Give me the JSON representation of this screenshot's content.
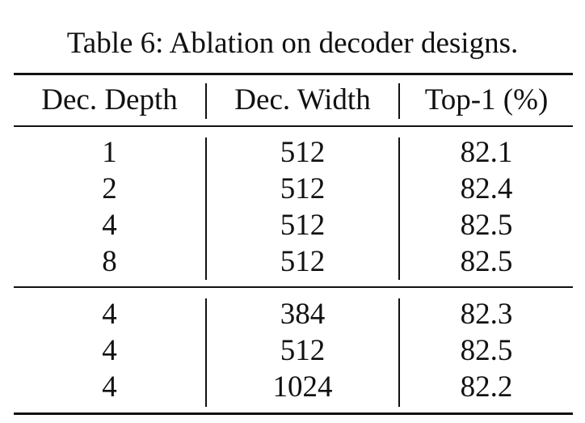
{
  "caption": "Table 6: Ablation on decoder designs.",
  "table": {
    "headers": [
      "Dec. Depth",
      "Dec. Width",
      "Top-1 (%)"
    ],
    "groups": [
      [
        [
          "1",
          "512",
          "82.1"
        ],
        [
          "2",
          "512",
          "82.4"
        ],
        [
          "4",
          "512",
          "82.5"
        ],
        [
          "8",
          "512",
          "82.5"
        ]
      ],
      [
        [
          "4",
          "384",
          "82.3"
        ],
        [
          "4",
          "512",
          "82.5"
        ],
        [
          "4",
          "1024",
          "82.2"
        ]
      ]
    ]
  }
}
